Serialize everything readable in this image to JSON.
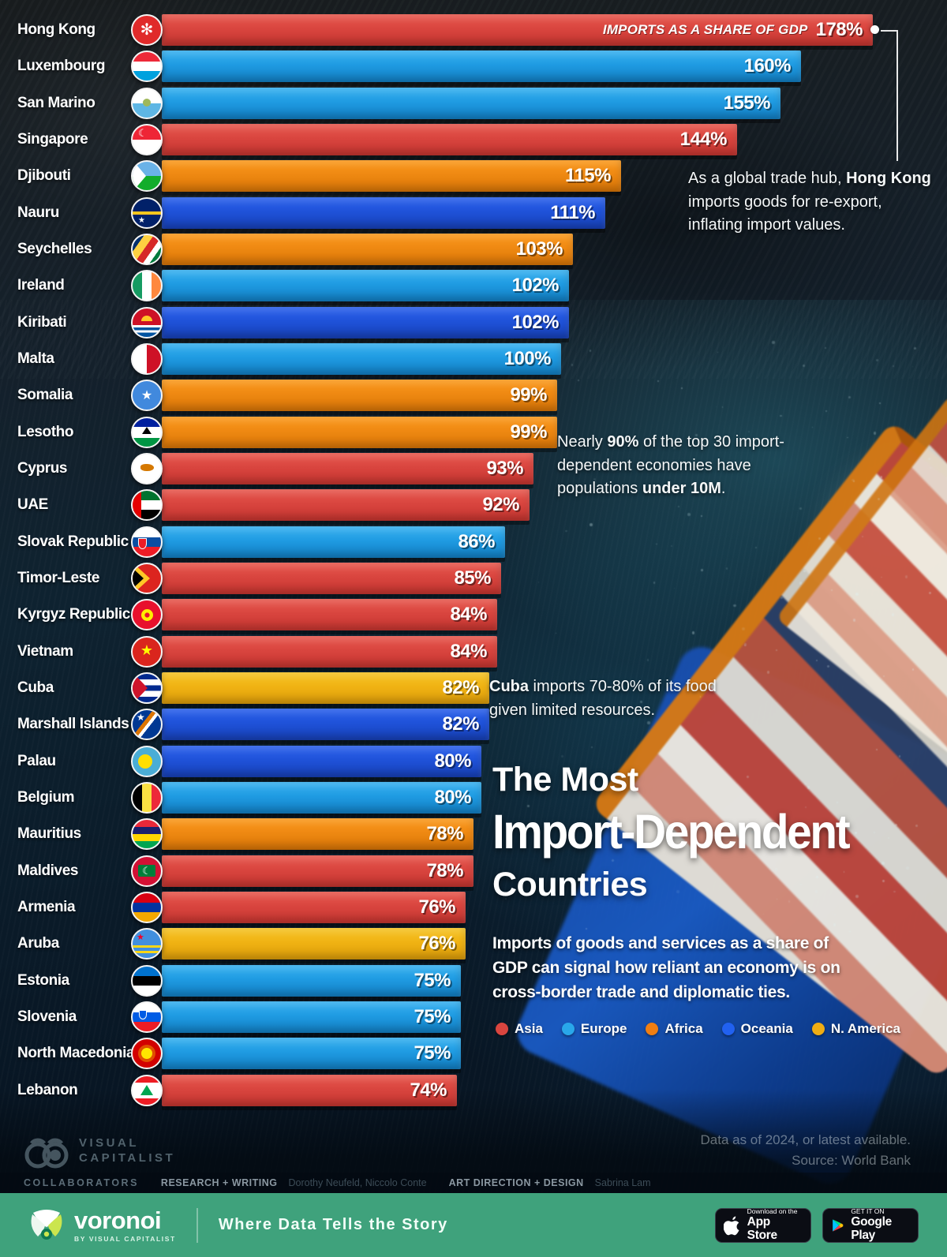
{
  "top_note_label": "IMPORTS AS A SHARE OF GDP",
  "rows": [
    {
      "country": "Hong Kong",
      "value": 178,
      "label": "178%",
      "continent": "asia",
      "flag": "hk"
    },
    {
      "country": "Luxembourg",
      "value": 160,
      "label": "160%",
      "continent": "europe",
      "flag": "lu"
    },
    {
      "country": "San Marino",
      "value": 155,
      "label": "155%",
      "continent": "europe",
      "flag": "sm"
    },
    {
      "country": "Singapore",
      "value": 144,
      "label": "144%",
      "continent": "asia",
      "flag": "sg"
    },
    {
      "country": "Djibouti",
      "value": 115,
      "label": "115%",
      "continent": "africa",
      "flag": "dj"
    },
    {
      "country": "Nauru",
      "value": 111,
      "label": "111%",
      "continent": "oceania",
      "flag": "nr"
    },
    {
      "country": "Seychelles",
      "value": 103,
      "label": "103%",
      "continent": "africa",
      "flag": "sc"
    },
    {
      "country": "Ireland",
      "value": 102,
      "label": "102%",
      "continent": "europe",
      "flag": "ie"
    },
    {
      "country": "Kiribati",
      "value": 102,
      "label": "102%",
      "continent": "oceania",
      "flag": "ki"
    },
    {
      "country": "Malta",
      "value": 100,
      "label": "100%",
      "continent": "europe",
      "flag": "mt"
    },
    {
      "country": "Somalia",
      "value": 99,
      "label": "99%",
      "continent": "africa",
      "flag": "so"
    },
    {
      "country": "Lesotho",
      "value": 99,
      "label": "99%",
      "continent": "africa",
      "flag": "ls"
    },
    {
      "country": "Cyprus",
      "value": 93,
      "label": "93%",
      "continent": "asia",
      "flag": "cy"
    },
    {
      "country": "UAE",
      "value": 92,
      "label": "92%",
      "continent": "asia",
      "flag": "ae"
    },
    {
      "country": "Slovak Republic",
      "value": 86,
      "label": "86%",
      "continent": "europe",
      "flag": "sk"
    },
    {
      "country": "Timor-Leste",
      "value": 85,
      "label": "85%",
      "continent": "asia",
      "flag": "tl"
    },
    {
      "country": "Kyrgyz Republic",
      "value": 84,
      "label": "84%",
      "continent": "asia",
      "flag": "kg"
    },
    {
      "country": "Vietnam",
      "value": 84,
      "label": "84%",
      "continent": "asia",
      "flag": "vn"
    },
    {
      "country": "Cuba",
      "value": 82,
      "label": "82%",
      "continent": "namerica",
      "flag": "cu"
    },
    {
      "country": "Marshall Islands",
      "value": 82,
      "label": "82%",
      "continent": "oceania",
      "flag": "mh"
    },
    {
      "country": "Palau",
      "value": 80,
      "label": "80%",
      "continent": "oceania",
      "flag": "pw"
    },
    {
      "country": "Belgium",
      "value": 80,
      "label": "80%",
      "continent": "europe",
      "flag": "be"
    },
    {
      "country": "Mauritius",
      "value": 78,
      "label": "78%",
      "continent": "africa",
      "flag": "mu"
    },
    {
      "country": "Maldives",
      "value": 78,
      "label": "78%",
      "continent": "asia",
      "flag": "mv"
    },
    {
      "country": "Armenia",
      "value": 76,
      "label": "76%",
      "continent": "asia",
      "flag": "am"
    },
    {
      "country": "Aruba",
      "value": 76,
      "label": "76%",
      "continent": "namerica",
      "flag": "aw"
    },
    {
      "country": "Estonia",
      "value": 75,
      "label": "75%",
      "continent": "europe",
      "flag": "ee"
    },
    {
      "country": "Slovenia",
      "value": 75,
      "label": "75%",
      "continent": "europe",
      "flag": "si"
    },
    {
      "country": "North Macedonia",
      "value": 75,
      "label": "75%",
      "continent": "europe",
      "flag": "mk"
    },
    {
      "country": "Lebanon",
      "value": 74,
      "label": "74%",
      "continent": "asia",
      "flag": "lb"
    }
  ],
  "annotations": {
    "hong_kong": [
      {
        "t": "As a global trade hub, ",
        "b": false
      },
      {
        "t": "Hong Kong",
        "b": true
      },
      {
        "t": " imports goods for re-export, inflating import values.",
        "b": false
      }
    ],
    "population": [
      {
        "t": "Nearly ",
        "b": false
      },
      {
        "t": "90%",
        "b": true
      },
      {
        "t": " of the top 30 import-dependent economies have populations ",
        "b": false
      },
      {
        "t": "under 10M",
        "b": true
      },
      {
        "t": ".",
        "b": false
      }
    ],
    "cuba": [
      {
        "t": "Cuba",
        "b": true
      },
      {
        "t": " imports 70-80% of its food given limited resources.",
        "b": false
      }
    ]
  },
  "title": {
    "line1": "The Most",
    "line2": "Import-Dependent",
    "line3": "Countries"
  },
  "description": "Imports of goods and services as a share of GDP can signal how reliant an economy is on cross-border trade and diplomatic ties.",
  "legend": [
    {
      "label": "Asia",
      "color": "#d9453f",
      "key": "asia"
    },
    {
      "label": "Europe",
      "color": "#29a7ea",
      "key": "europe"
    },
    {
      "label": "Africa",
      "color": "#f07e12",
      "key": "africa"
    },
    {
      "label": "Oceania",
      "color": "#2161f0",
      "key": "oceania"
    },
    {
      "label": "N. America",
      "color": "#f0ad14",
      "key": "namerica"
    }
  ],
  "source": {
    "line1": "Data as of 2024, or latest available.",
    "line2": "Source: World Bank"
  },
  "credits": {
    "collaborators": "COLLABORATORS",
    "rw_label": "RESEARCH + WRITING",
    "rw_names": "Dorothy Neufeld, Niccolo Conte",
    "ad_label": "ART DIRECTION + DESIGN",
    "ad_name": "Sabrina Lam"
  },
  "branding": {
    "vc_line1": "VISUAL",
    "vc_line2": "CAPITALIST",
    "voronoi_name": "voronoi",
    "voronoi_sub": "BY VISUAL CAPITALIST",
    "tagline": "Where Data Tells the Story",
    "appstore_top": "Download on the",
    "appstore_bottom": "App Store",
    "gplay_top": "GET IT ON",
    "gplay_bottom": "Google Play"
  },
  "chart_data": {
    "type": "bar",
    "orientation": "horizontal",
    "title": "The Most Import-Dependent Countries",
    "subtitle": "Imports of goods and services as a share of GDP can signal how reliant an economy is on cross-border trade and diplomatic ties.",
    "value_label": "Imports as a share of GDP",
    "unit": "%",
    "xlim": [
      0,
      178
    ],
    "categories": [
      "Hong Kong",
      "Luxembourg",
      "San Marino",
      "Singapore",
      "Djibouti",
      "Nauru",
      "Seychelles",
      "Ireland",
      "Kiribati",
      "Malta",
      "Somalia",
      "Lesotho",
      "Cyprus",
      "UAE",
      "Slovak Republic",
      "Timor-Leste",
      "Kyrgyz Republic",
      "Vietnam",
      "Cuba",
      "Marshall Islands",
      "Palau",
      "Belgium",
      "Mauritius",
      "Maldives",
      "Armenia",
      "Aruba",
      "Estonia",
      "Slovenia",
      "North Macedonia",
      "Lebanon"
    ],
    "values": [
      178,
      160,
      155,
      144,
      115,
      111,
      103,
      102,
      102,
      100,
      99,
      99,
      93,
      92,
      86,
      85,
      84,
      84,
      82,
      82,
      80,
      80,
      78,
      78,
      76,
      76,
      75,
      75,
      75,
      74
    ],
    "groups": [
      "Asia",
      "Europe",
      "Europe",
      "Asia",
      "Africa",
      "Oceania",
      "Africa",
      "Europe",
      "Oceania",
      "Europe",
      "Africa",
      "Africa",
      "Asia",
      "Asia",
      "Europe",
      "Asia",
      "Asia",
      "Asia",
      "N. America",
      "Oceania",
      "Oceania",
      "Europe",
      "Africa",
      "Asia",
      "Asia",
      "N. America",
      "Europe",
      "Europe",
      "Europe",
      "Asia"
    ],
    "legend_position": "bottom-right",
    "grid": false,
    "source": "World Bank, data as of 2024 or latest available"
  }
}
